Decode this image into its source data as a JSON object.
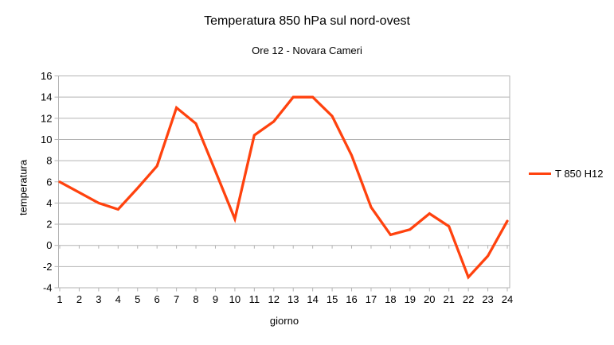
{
  "title": "Temperatura 850 hPa sul nord-ovest",
  "subtitle": "Ore 12 - Novara Cameri",
  "legend": {
    "label": "T 850 H12"
  },
  "chart_data": {
    "type": "line",
    "title": "Temperatura 850 hPa sul nord-ovest",
    "subtitle": "Ore 12 - Novara Cameri",
    "xlabel": "giorno",
    "ylabel": "temperatura",
    "x": [
      1,
      2,
      3,
      4,
      5,
      6,
      7,
      8,
      9,
      10,
      11,
      12,
      13,
      14,
      15,
      16,
      17,
      18,
      19,
      20,
      21,
      22,
      23,
      24
    ],
    "series": [
      {
        "name": "T 850 H12",
        "color": "#ff420e",
        "values": [
          6.0,
          5.0,
          4.0,
          3.4,
          5.4,
          7.5,
          13.0,
          11.5,
          7.0,
          2.5,
          10.4,
          11.7,
          14.0,
          14.0,
          12.2,
          8.5,
          3.6,
          1.0,
          1.5,
          3.0,
          1.8,
          -3.0,
          -1.0,
          2.3
        ]
      }
    ],
    "ylim": [
      -4,
      16
    ],
    "ytick_step": 2,
    "grid": true,
    "grid_color": "#b3b3b3",
    "axis_color": "#b3b3b3",
    "text_color": "#000000",
    "background": "#ffffff",
    "legend_position": "right"
  }
}
